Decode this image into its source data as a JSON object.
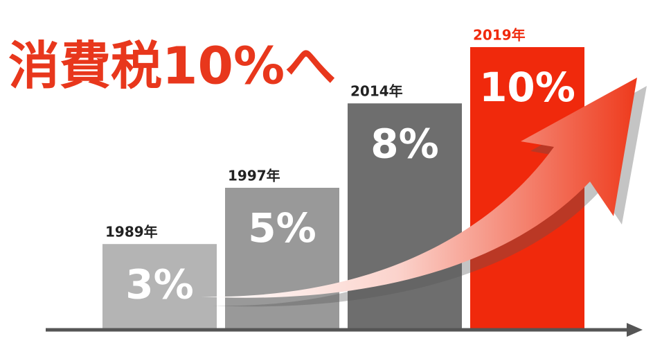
{
  "chart_data": {
    "type": "bar",
    "title": "消費税10%へ",
    "categories": [
      "1989年",
      "1997年",
      "2014年",
      "2019年"
    ],
    "values": [
      3,
      5,
      8,
      10
    ],
    "value_labels": [
      "3%",
      "5%",
      "8%",
      "10%"
    ],
    "colors": [
      "#b4b4b4",
      "#999999",
      "#6e6e6e",
      "#f0290c"
    ],
    "ylim": [
      0,
      10
    ]
  }
}
